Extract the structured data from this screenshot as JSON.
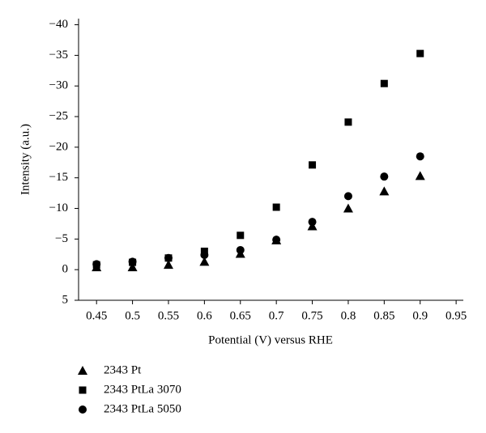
{
  "chart_data": {
    "type": "scatter",
    "xlabel": "Potential (V) versus RHE",
    "ylabel": "Intensity (a.u.)",
    "xlim": [
      0.425,
      0.96
    ],
    "xticks": [
      0.45,
      0.5,
      0.55,
      0.6,
      0.65,
      0.7,
      0.75,
      0.8,
      0.85,
      0.9,
      0.95
    ],
    "ylim": [
      5,
      -41
    ],
    "yticks": [
      {
        "value": -40,
        "label": "−40"
      },
      {
        "value": -35,
        "label": "−35"
      },
      {
        "value": -30,
        "label": "−30"
      },
      {
        "value": -25,
        "label": "−25"
      },
      {
        "value": -20,
        "label": "−20"
      },
      {
        "value": -15,
        "label": "−15"
      },
      {
        "value": -10,
        "label": "−10"
      },
      {
        "value": -5,
        "label": "−5"
      },
      0,
      5
    ],
    "x": [
      0.45,
      0.5,
      0.55,
      0.6,
      0.65,
      0.7,
      0.75,
      0.8,
      0.85,
      0.9
    ],
    "series": [
      {
        "name": "2343 Pt",
        "color": "#000000",
        "marker": "triangle",
        "values": [
          -0.4,
          -0.4,
          -0.8,
          -1.3,
          -2.6,
          -4.8,
          -7.1,
          -10,
          -12.8,
          -15.3
        ]
      },
      {
        "name": "2343 PtLa 3070",
        "color": "#000000",
        "marker": "square",
        "values": [
          -0.8,
          -1.2,
          -1.9,
          -3.0,
          -5.6,
          -10.2,
          -17.1,
          -24.1,
          -30.4,
          -35.3
        ]
      },
      {
        "name": "2343 PtLa 5050",
        "color": "#000000",
        "marker": "circle",
        "values": [
          -0.9,
          -1.3,
          -1.9,
          -2.4,
          -3.2,
          -4.9,
          -7.8,
          -12.0,
          -15.2,
          -18.5
        ]
      }
    ],
    "legend": "below"
  }
}
